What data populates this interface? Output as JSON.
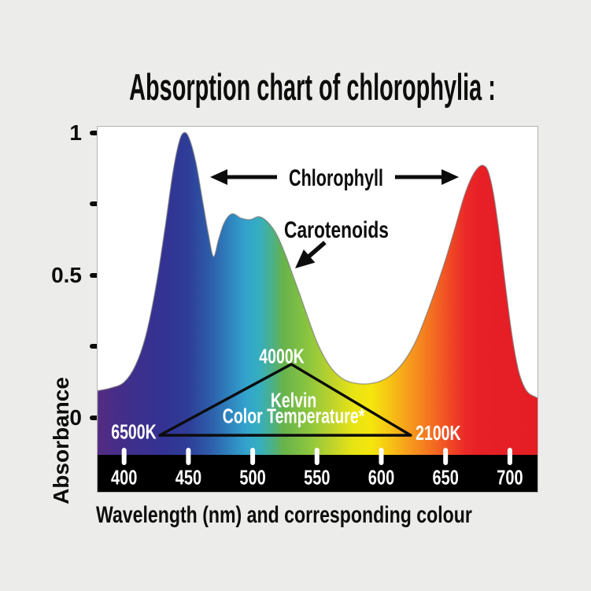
{
  "page": {
    "background": "#ECECEA",
    "plot_background": "#FFFFFF",
    "plot_border": "#B4B4B4",
    "bar_color": "#000000",
    "text_color": "#0D0D0D",
    "white_label_color": "#FFFFFF",
    "curve_edge_color": "#6E6E6E"
  },
  "title": "Absorption chart of chlorophylia :",
  "axes": {
    "y_label": "Absorbance",
    "x_label": "Wavelength (nm) and corresponding colour"
  },
  "chart_data": {
    "type": "area",
    "title": "Absorption chart of chlorophylia :",
    "xlabel": "Wavelength (nm) and corresponding colour",
    "ylabel": "Absorbance",
    "x_unit": "nm",
    "xlim": [
      379.5,
      721.5
    ],
    "ylim": [
      -0.15,
      1.05
    ],
    "grid": false,
    "y_ticks": [
      {
        "value": 1,
        "label": "1"
      },
      {
        "value": 0.75,
        "label": ""
      },
      {
        "value": 0.5,
        "label": "0.5"
      },
      {
        "value": 0.25,
        "label": ""
      },
      {
        "value": 0,
        "label": "0"
      }
    ],
    "x_ticks": [
      {
        "value": 400,
        "label": "400"
      },
      {
        "value": 450,
        "label": "450"
      },
      {
        "value": 500,
        "label": "500"
      },
      {
        "value": 550,
        "label": "550"
      },
      {
        "value": 600,
        "label": "600"
      },
      {
        "value": 650,
        "label": "650"
      },
      {
        "value": 700,
        "label": "700"
      }
    ],
    "curve_points": [
      [
        379.5,
        0.095
      ],
      [
        390,
        0.105
      ],
      [
        400,
        0.125
      ],
      [
        409,
        0.185
      ],
      [
        417,
        0.29
      ],
      [
        425,
        0.465
      ],
      [
        432,
        0.67
      ],
      [
        438,
        0.86
      ],
      [
        443,
        0.97
      ],
      [
        447,
        1.0
      ],
      [
        451,
        0.975
      ],
      [
        456,
        0.89
      ],
      [
        461,
        0.76
      ],
      [
        465.5,
        0.645
      ],
      [
        469.5,
        0.565
      ],
      [
        473.5,
        0.625
      ],
      [
        478,
        0.685
      ],
      [
        484,
        0.715
      ],
      [
        491,
        0.7
      ],
      [
        498,
        0.695
      ],
      [
        505,
        0.705
      ],
      [
        512,
        0.685
      ],
      [
        519,
        0.64
      ],
      [
        526,
        0.565
      ],
      [
        532,
        0.49
      ],
      [
        538,
        0.415
      ],
      [
        545,
        0.325
      ],
      [
        551,
        0.255
      ],
      [
        558,
        0.195
      ],
      [
        565,
        0.155
      ],
      [
        573,
        0.13
      ],
      [
        582,
        0.12
      ],
      [
        591,
        0.12
      ],
      [
        600,
        0.13
      ],
      [
        609,
        0.155
      ],
      [
        618,
        0.2
      ],
      [
        627,
        0.27
      ],
      [
        635,
        0.36
      ],
      [
        643,
        0.46
      ],
      [
        650,
        0.555
      ],
      [
        657,
        0.66
      ],
      [
        664,
        0.77
      ],
      [
        670,
        0.84
      ],
      [
        675,
        0.875
      ],
      [
        679,
        0.885
      ],
      [
        683,
        0.865
      ],
      [
        687,
        0.79
      ],
      [
        691,
        0.67
      ],
      [
        695,
        0.52
      ],
      [
        699,
        0.375
      ],
      [
        703,
        0.25
      ],
      [
        707,
        0.16
      ],
      [
        711,
        0.11
      ],
      [
        715,
        0.085
      ],
      [
        721.5,
        0.07
      ]
    ],
    "spectrum_stops": [
      {
        "nm": 379.5,
        "color": "#542B82"
      },
      {
        "nm": 405,
        "color": "#3E2F8C"
      },
      {
        "nm": 430,
        "color": "#333293"
      },
      {
        "nm": 450,
        "color": "#2E3D98"
      },
      {
        "nm": 468,
        "color": "#2D5FAB"
      },
      {
        "nm": 482,
        "color": "#2F83BE"
      },
      {
        "nm": 495,
        "color": "#33A3CD"
      },
      {
        "nm": 505,
        "color": "#35AEC0"
      },
      {
        "nm": 515,
        "color": "#4BB08A"
      },
      {
        "nm": 524,
        "color": "#67B34B"
      },
      {
        "nm": 545,
        "color": "#8FC73E"
      },
      {
        "nm": 562,
        "color": "#BFD32B"
      },
      {
        "nm": 578,
        "color": "#E7E414"
      },
      {
        "nm": 592,
        "color": "#F5E60D"
      },
      {
        "nm": 605,
        "color": "#F6C813"
      },
      {
        "nm": 618,
        "color": "#F7A51B"
      },
      {
        "nm": 636,
        "color": "#F4781F"
      },
      {
        "nm": 652,
        "color": "#F04D24"
      },
      {
        "nm": 665,
        "color": "#EB2A28"
      },
      {
        "nm": 678,
        "color": "#E71F26"
      },
      {
        "nm": 721.5,
        "color": "#E51D25"
      }
    ],
    "annotations": {
      "chlorophyll": {
        "label": "Chlorophyll",
        "arrow_a": 0.844,
        "arrow_nm": [
          466.9,
          660.3
        ],
        "text_gap_nm": [
          522,
          607.6
        ],
        "text_nm": 564.8
      },
      "carotenoids": {
        "label": "Carotenoids",
        "text_nm": 565.1,
        "text_a": 0.662,
        "arrow_from": {
          "nm": 556.2,
          "a": 0.615
        },
        "arrow_to": {
          "nm": 533.0,
          "a": 0.524
        }
      },
      "kelvin_triangle": {
        "apex": {
          "nm": 530.0,
          "a": 0.188,
          "label": "4000K",
          "label_nm": 522.6,
          "label_a": 0.218
        },
        "left": {
          "nm": 427.7,
          "a": -0.061,
          "label": "6500K",
          "label_nm": 407.5,
          "label_a": -0.047
        },
        "right": {
          "nm": 622.9,
          "a": -0.061,
          "label": "2100K",
          "label_nm": 644.3,
          "label_a": -0.052
        },
        "center_line1": "Kelvin",
        "center_line2": "Color Temperature*",
        "center_nm": 531.8,
        "center_a_line1": 0.063,
        "center_a_line2": 0.008
      }
    }
  }
}
